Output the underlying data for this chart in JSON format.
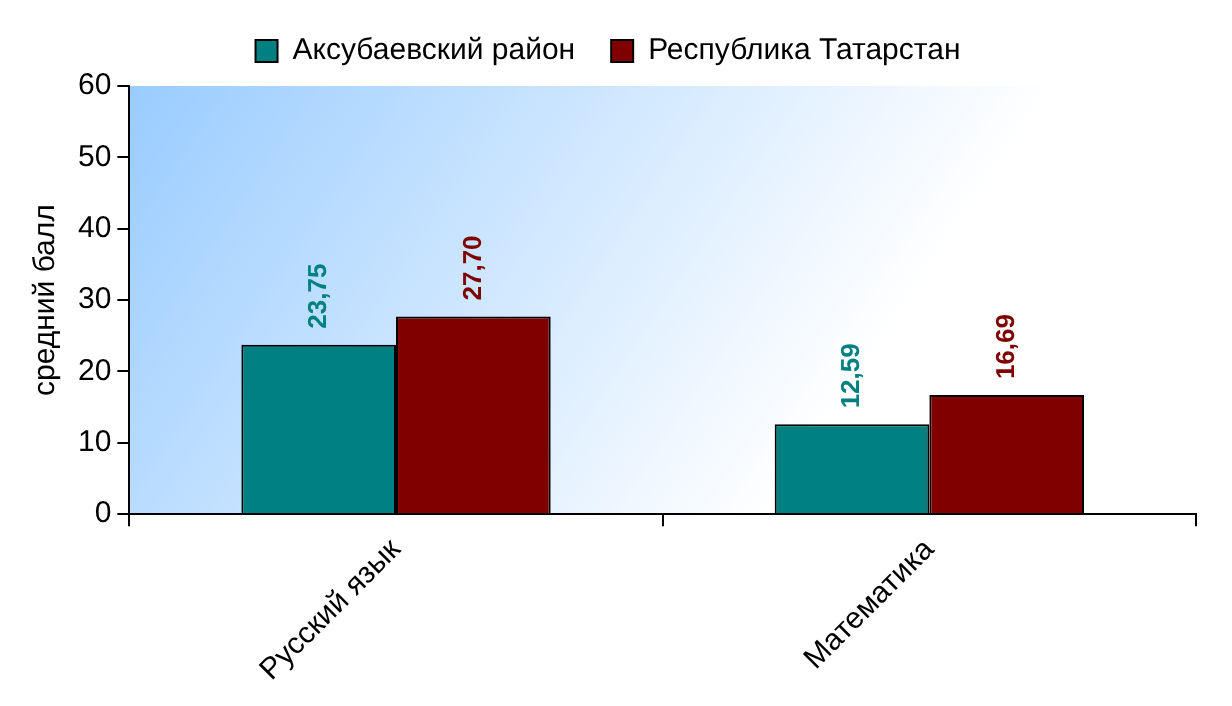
{
  "chart_data": {
    "type": "bar",
    "ylabel": "средний балл",
    "categories": [
      "Русский язык",
      "Математика"
    ],
    "series": [
      {
        "name": "Аксубаевский район",
        "color": "#008080",
        "values": [
          23.75,
          12.59
        ],
        "value_labels": [
          "23,75",
          "12,59"
        ]
      },
      {
        "name": "Республика Татарстан",
        "color": "#800000",
        "values": [
          27.7,
          16.69
        ],
        "value_labels": [
          "27,70",
          "16,69"
        ]
      }
    ],
    "ylim": [
      0,
      60
    ],
    "yticks": [
      0,
      10,
      20,
      30,
      40,
      50,
      60
    ],
    "grid": false,
    "legend": "top"
  }
}
